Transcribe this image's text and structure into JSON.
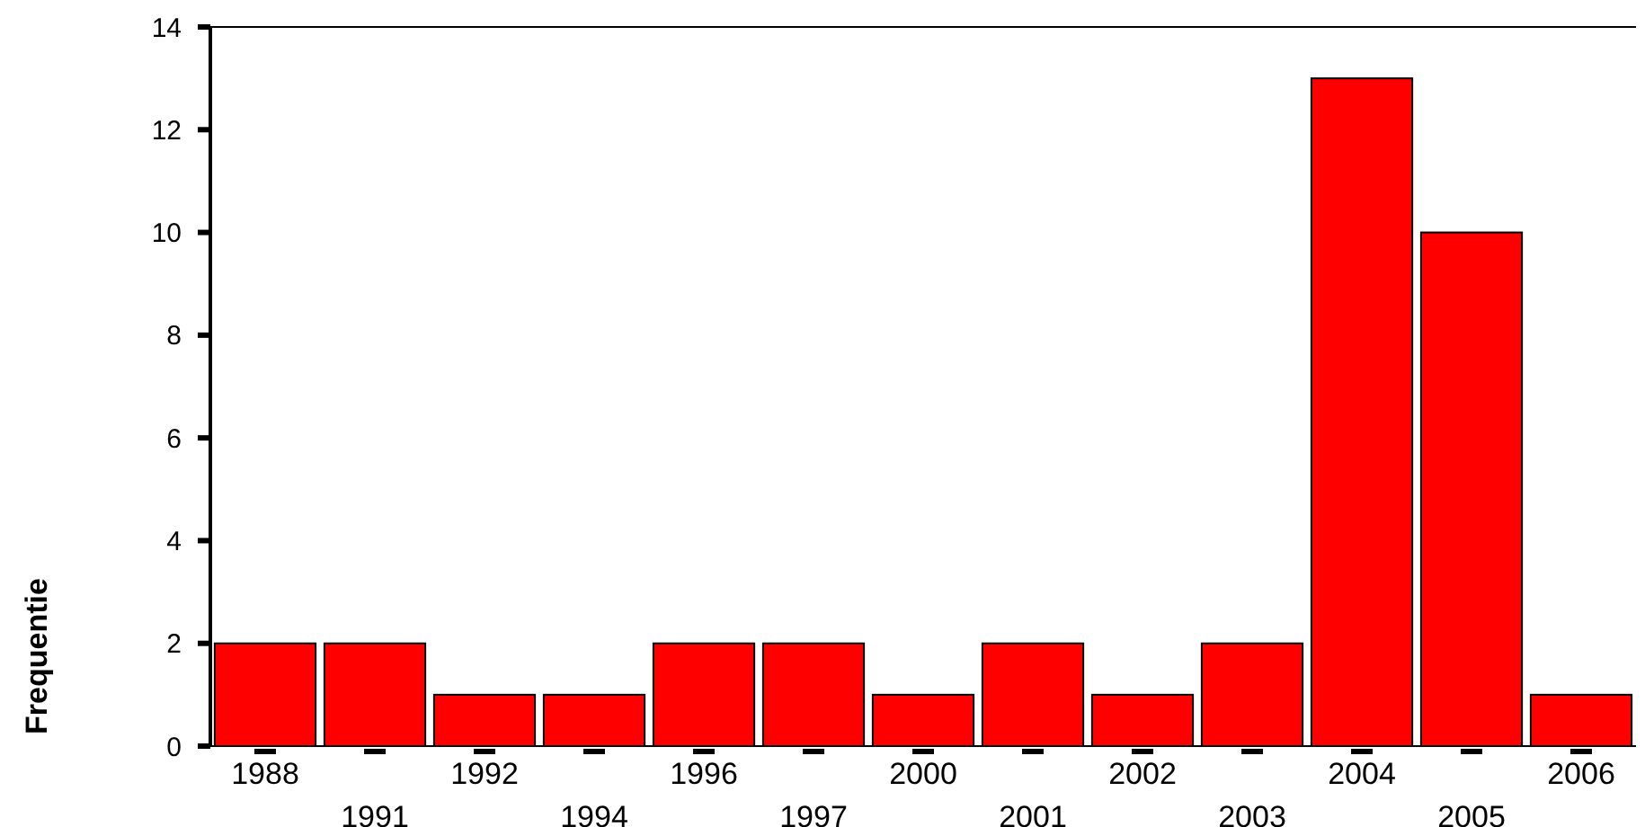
{
  "chart_data": {
    "type": "bar",
    "ylabel": "Frequentie",
    "categories": [
      "1988",
      "1991",
      "1992",
      "1994",
      "1996",
      "1997",
      "2000",
      "2001",
      "2002",
      "2003",
      "2004",
      "2005",
      "2006"
    ],
    "values": [
      2,
      2,
      1,
      1,
      2,
      2,
      1,
      2,
      1,
      2,
      13,
      10,
      1
    ],
    "color": "#ff0000",
    "ylim": [
      0,
      14
    ],
    "yticks": [
      0,
      2,
      4,
      6,
      8,
      10,
      12,
      14
    ],
    "grid": false
  }
}
